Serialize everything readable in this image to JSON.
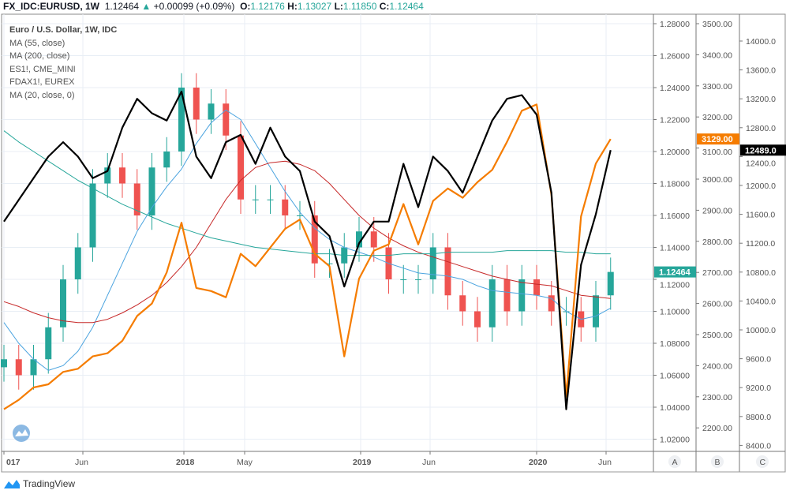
{
  "header": {
    "symbol": "FX_IDC:EURUSD, 1W",
    "last": "1.12464",
    "change": "+0.00099 (+0.09%)",
    "o_label": "O:",
    "o": "1.12176",
    "h_label": "H:",
    "h": "1.13027",
    "l_label": "L:",
    "l": "1.11850",
    "c_label": "C:",
    "c": "1.12464"
  },
  "legend": [
    "Euro / U.S. Dollar, 1W, IDC",
    "MA (55, close)",
    "MA (200, close)",
    "ES1!, CME_MINI",
    "FDAX1!, EUREX",
    "MA (20, close, 0)"
  ],
  "brand": "TradingView",
  "colors": {
    "up": "#26a69a",
    "down": "#ef5350",
    "es": "#f57c00",
    "dax": "#000000",
    "ma55": "#4aa3df",
    "ma200": "#c62828",
    "ma20": "#26a69a"
  },
  "chart_data": {
    "type": "line",
    "x_start": "2017-01",
    "interval": "month",
    "x_tick_labels": [
      "017",
      "Jun",
      "2018",
      "May",
      "2019",
      "Jun",
      "2020",
      "Jun"
    ],
    "axis_scale_labels": [
      "A",
      "B",
      "C"
    ],
    "axes": {
      "A": {
        "range": [
          1.02,
          1.28
        ],
        "ticks": [
          "1.28000",
          "1.26000",
          "1.24000",
          "1.22000",
          "1.20000",
          "1.18000",
          "1.16000",
          "1.14000",
          "1.12000",
          "1.10000",
          "1.08000",
          "1.06000",
          "1.04000",
          "1.02000"
        ],
        "last_label": "1.12464"
      },
      "B": {
        "range": [
          2200,
          3500
        ],
        "ticks": [
          "3500.00",
          "3400.00",
          "3300.00",
          "3200.00",
          "3100.00",
          "3000.00",
          "2900.00",
          "2800.00",
          "2700.00",
          "2600.00",
          "2500.00",
          "2400.00",
          "2300.00",
          "2200.00"
        ],
        "last_label": "3129.00"
      },
      "C": {
        "range": [
          8400,
          14000
        ],
        "ticks": [
          "14000.0",
          "13600.0",
          "13200.0",
          "12800.0",
          "12400.0",
          "12000.0",
          "11600.0",
          "11200.0",
          "10800.0",
          "10400.0",
          "10000.0",
          "9600.0",
          "9200.0",
          "8800.0",
          "8400.0"
        ],
        "last_label": "12489.0"
      }
    },
    "series": [
      {
        "name": "EURUSD",
        "axis": "A",
        "kind": "candle",
        "values": [
          1.07,
          1.06,
          1.07,
          1.09,
          1.12,
          1.14,
          1.18,
          1.19,
          1.18,
          1.16,
          1.19,
          1.2,
          1.24,
          1.22,
          1.23,
          1.21,
          1.17,
          1.17,
          1.17,
          1.16,
          1.16,
          1.13,
          1.13,
          1.14,
          1.15,
          1.14,
          1.12,
          1.12,
          1.12,
          1.14,
          1.11,
          1.1,
          1.09,
          1.12,
          1.1,
          1.12,
          1.11,
          1.1,
          1.1,
          1.09,
          1.11,
          1.12464
        ]
      },
      {
        "name": "MA (55, close)",
        "axis": "A",
        "color": "ma55",
        "values": [
          1.093,
          1.08,
          1.07,
          1.063,
          1.066,
          1.075,
          1.09,
          1.11,
          1.13,
          1.15,
          1.165,
          1.178,
          1.189,
          1.205,
          1.218,
          1.226,
          1.22,
          1.205,
          1.19,
          1.175,
          1.162,
          1.152,
          1.145,
          1.14,
          1.137,
          1.134,
          1.13,
          1.127,
          1.124,
          1.123,
          1.122,
          1.12,
          1.116,
          1.113,
          1.112,
          1.111,
          1.11,
          1.108,
          1.1,
          1.095,
          1.097,
          1.102
        ]
      },
      {
        "name": "MA (200, close)",
        "axis": "A",
        "color": "ma200",
        "values": [
          1.106,
          1.103,
          1.099,
          1.096,
          1.094,
          1.093,
          1.093,
          1.095,
          1.099,
          1.104,
          1.11,
          1.118,
          1.128,
          1.14,
          1.155,
          1.17,
          1.182,
          1.19,
          1.193,
          1.194,
          1.192,
          1.188,
          1.18,
          1.17,
          1.16,
          1.152,
          1.146,
          1.141,
          1.137,
          1.134,
          1.131,
          1.128,
          1.125,
          1.122,
          1.12,
          1.118,
          1.117,
          1.116,
          1.113,
          1.11,
          1.109,
          1.108
        ]
      },
      {
        "name": "MA (20, close, 0)",
        "axis": "A",
        "color": "ma20",
        "values": [
          1.213,
          1.206,
          1.2,
          1.194,
          1.188,
          1.182,
          1.177,
          1.172,
          1.167,
          1.163,
          1.159,
          1.155,
          1.152,
          1.149,
          1.146,
          1.144,
          1.142,
          1.14,
          1.139,
          1.138,
          1.137,
          1.136,
          1.136,
          1.135,
          1.135,
          1.135,
          1.135,
          1.136,
          1.136,
          1.136,
          1.137,
          1.137,
          1.137,
          1.137,
          1.138,
          1.138,
          1.138,
          1.138,
          1.137,
          1.137,
          1.136,
          1.136
        ]
      },
      {
        "name": "ES1!, CME_MINI",
        "axis": "B",
        "color": "es",
        "values": [
          2260,
          2290,
          2330,
          2340,
          2380,
          2390,
          2430,
          2440,
          2480,
          2560,
          2600,
          2700,
          2860,
          2650,
          2640,
          2620,
          2760,
          2720,
          2780,
          2840,
          2870,
          2760,
          2720,
          2430,
          2680,
          2770,
          2790,
          2920,
          2790,
          2930,
          2970,
          2940,
          2990,
          3030,
          3120,
          3220,
          3240,
          2950,
          2300,
          2880,
          3050,
          3129
        ]
      },
      {
        "name": "FDAX1!, EUREX",
        "axis": "C",
        "color": "dax",
        "values": [
          11500,
          11800,
          12100,
          12400,
          12600,
          12400,
          12100,
          12200,
          12800,
          13200,
          13000,
          12900,
          13300,
          12400,
          12100,
          12600,
          12700,
          12300,
          12800,
          12400,
          12200,
          11500,
          11300,
          10600,
          11200,
          11500,
          11500,
          12300,
          11700,
          12400,
          12200,
          11900,
          12400,
          12900,
          13200,
          13250,
          12980,
          11900,
          8900,
          10900,
          11600,
          12489
        ]
      }
    ]
  }
}
